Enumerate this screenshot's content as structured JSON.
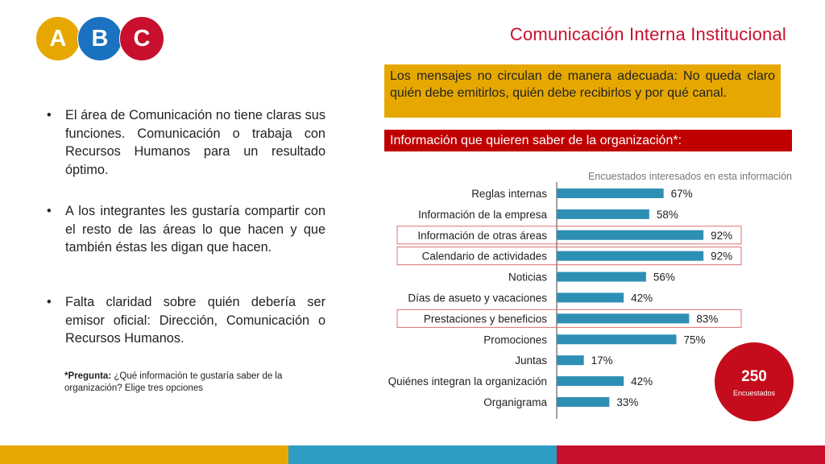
{
  "colors": {
    "logo_a": "#e6a800",
    "logo_b": "#1a72c0",
    "logo_c": "#c8102e",
    "bar": "#2e8fb5",
    "highlight": "#e07070",
    "footer": [
      "#e6a800",
      "#2e9dc4",
      "#c8102e"
    ]
  },
  "logo": {
    "a": "A",
    "b": "B",
    "c": "C"
  },
  "header": {
    "title": "Comunicación Interna Institucional"
  },
  "bullets": [
    "El área de Comunicación no tiene claras sus funciones. Comunicación  o trabaja con Recursos Humanos para un resultado óptimo.",
    "A los integrantes les gustaría compartir con el resto de las áreas lo que hacen y que también éstas les digan que hacen.",
    "Falta claridad sobre quién debería ser emisor oficial: Dirección, Comunicación o Recursos Humanos."
  ],
  "footnote": {
    "label": "*Pregunta:",
    "text": " ¿Qué información te gustaría saber de la organización? Elige tres opciones"
  },
  "callout": "Los mensajes no circulan de manera adecuada: No queda claro quién debe emitirlos, quién debe recibirlos y por qué canal.",
  "section_header": "Información que quieren saber de la organización*:",
  "badge": {
    "value": "250",
    "label": "Encuestados"
  },
  "chart_data": {
    "type": "bar",
    "orientation": "horizontal",
    "title": "Encuestados interesados en esta información",
    "categories": [
      "Reglas internas",
      "Información de la empresa",
      "Información de otras áreas",
      "Calendario de actividades",
      "Noticias",
      "Días de asueto y vacaciones",
      "Prestaciones y beneficios",
      "Promociones",
      "Juntas",
      "Quiénes integran la organización",
      "Organigrama"
    ],
    "values": [
      67,
      58,
      92,
      92,
      56,
      42,
      83,
      75,
      17,
      42,
      33
    ],
    "labels": [
      "67%",
      "58%",
      "92%",
      "92%",
      "56%",
      "42%",
      "83%",
      "75%",
      "17%",
      "42%",
      "33%"
    ],
    "highlighted": [
      false,
      false,
      true,
      true,
      false,
      false,
      true,
      false,
      false,
      false,
      false
    ],
    "xlim": [
      0,
      100
    ]
  }
}
